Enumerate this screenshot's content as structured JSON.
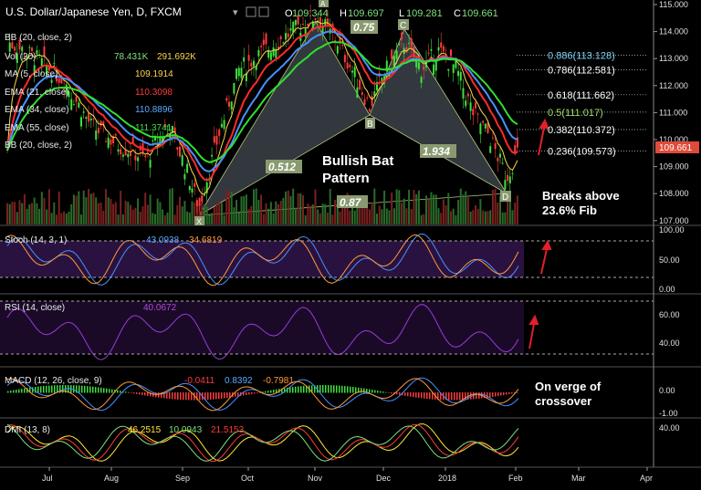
{
  "header": {
    "symbol": "U.S. Dollar/Japanese Yen, D, FXCM",
    "ohlc": {
      "o_label": "O",
      "o": "109.344",
      "h_label": "H",
      "h": "109.697",
      "l_label": "L",
      "l": "109.281",
      "c_label": "C",
      "c": "109.661"
    }
  },
  "indicators": {
    "bb1": {
      "label": "BB (20, close, 2)"
    },
    "vol": {
      "label": "Vol (20)",
      "v1": "78.431K",
      "v2": "291.692K"
    },
    "ma": {
      "label": "MA (5, close)",
      "v": "109.1914"
    },
    "ema21": {
      "label": "EMA (21, close)",
      "v": "110.3098"
    },
    "ema34": {
      "label": "EMA (34, close)",
      "v": "110.8896"
    },
    "ema55": {
      "label": "EMA (55, close)",
      "v": "111.3741"
    },
    "bb2": {
      "label": "BB (20, close, 2)"
    },
    "stoch": {
      "label": "Stoch (14, 3, 1)",
      "v1": "43.0938",
      "v2": "34.6819"
    },
    "rsi": {
      "label": "RSI (14, close)",
      "v": "40.0672"
    },
    "macd": {
      "label": "MACD (12, 26, close, 9)",
      "v1": "-0.0411",
      "v2": "0.8392",
      "v3": "-0.7981"
    },
    "dmi": {
      "label": "DMI (13, 8)",
      "v1": "46.2515",
      "v2": "10.0943",
      "v3": "21.5153"
    }
  },
  "annotations": {
    "pattern_line1": "Bullish Bat",
    "pattern_line2": "Pattern",
    "breaks_line1": "Breaks above",
    "breaks_line2": "23.6% Fib",
    "verge_line1": "On verge of",
    "verge_line2": "crossover",
    "point_x": "X",
    "point_a": "A",
    "point_b": "B",
    "point_c": "C",
    "point_d": "D",
    "r_075": "0.75",
    "r_0512": "0.512",
    "r_1934": "1.934",
    "r_087": "0.87"
  },
  "fib_levels": [
    {
      "label": "0.886(113.128)",
      "color": "#7fd3ff",
      "price": 113.128
    },
    {
      "label": "0.786(112.581)",
      "color": "#ffffff",
      "price": 112.581
    },
    {
      "label": "0.618(111.662)",
      "color": "#ffffff",
      "price": 111.662
    },
    {
      "label": "0.5(111.017)",
      "color": "#9fe06a",
      "price": 111.017
    },
    {
      "label": "0.382(110.372)",
      "color": "#ffffff",
      "price": 110.372
    },
    {
      "label": "0.236(109.573)",
      "color": "#ffffff",
      "price": 109.573
    }
  ],
  "price_axis": {
    "ticks": [
      "115.000",
      "114.000",
      "113.000",
      "112.000",
      "111.000",
      "110.000",
      "109.000",
      "108.000",
      "107.000"
    ],
    "current": "109.661"
  },
  "stoch_axis": {
    "ticks": [
      "100.00",
      "50.00",
      "0.00"
    ]
  },
  "rsi_axis": {
    "ticks": [
      "60.00",
      "40.00"
    ]
  },
  "macd_axis": {
    "ticks": [
      "0.00",
      "-1.00"
    ]
  },
  "dmi_axis": {
    "ticks": [
      "40.00"
    ]
  },
  "time_axis": {
    "labels": [
      "Jul",
      "Aug",
      "Sep",
      "Oct",
      "Nov",
      "Dec",
      "2018",
      "Feb",
      "Mar",
      "Apr"
    ]
  },
  "chart_data": {
    "type": "line",
    "title": "U.S. Dollar/Japanese Yen, D, FXCM",
    "x_range": [
      "Jul 2017",
      "Apr 2018"
    ],
    "ylim": [
      107,
      115
    ],
    "harmonic_points": [
      {
        "name": "X",
        "date": "Sep 2017",
        "price": 107.3
      },
      {
        "name": "A",
        "date": "Nov 2017",
        "price": 114.7
      },
      {
        "name": "B",
        "date": "Nov 2017",
        "price": 110.8
      },
      {
        "name": "C",
        "date": "Dec 2017",
        "price": 113.7
      },
      {
        "name": "D",
        "date": "Feb 2018",
        "price": 108.3
      }
    ],
    "series": [
      {
        "name": "Close",
        "x": [
          "Jul",
          "Aug",
          "Sep",
          "Oct",
          "Nov",
          "Dec",
          "2018",
          "Feb"
        ],
        "values": [
          113.2,
          110.4,
          108.3,
          112.6,
          114.0,
          111.8,
          112.8,
          109.7
        ]
      },
      {
        "name": "EMA (21, close)",
        "values": [
          112.7,
          110.6,
          109.6,
          111.8,
          113.2,
          112.6,
          112.7,
          110.3
        ]
      },
      {
        "name": "EMA (34, close)",
        "values": [
          112.4,
          111.0,
          110.0,
          111.2,
          112.8,
          112.6,
          112.6,
          110.9
        ]
      },
      {
        "name": "EMA (55, close)",
        "values": [
          112.0,
          111.2,
          110.3,
          110.8,
          112.3,
          112.4,
          112.5,
          111.4
        ]
      }
    ],
    "legend": "top-left"
  }
}
